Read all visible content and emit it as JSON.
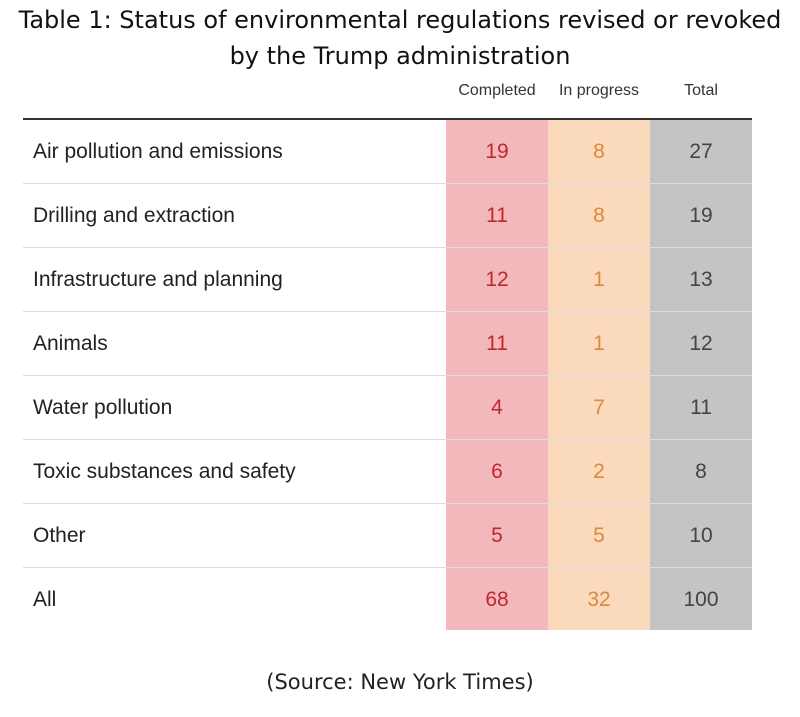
{
  "title": {
    "line1": "Table 1: Status of environmental regulations revised or revoked",
    "line2": "by the Trump administration"
  },
  "source": "(Source: New York Times)",
  "colors": {
    "completed_bg": "#f2b8bc",
    "completed_text": "#c0282e",
    "in_progress_bg": "#fbd9bd",
    "in_progress_text": "#d98a3c",
    "total_bg": "#c4c4c4",
    "total_text": "#444444"
  },
  "chart_data": {
    "type": "table",
    "title": "Table 1: Status of environmental regulations revised or revoked by the Trump administration",
    "columns": [
      "Completed",
      "In progress",
      "Total"
    ],
    "rows": [
      {
        "label": "Air pollution and emissions",
        "values": [
          19,
          8,
          27
        ]
      },
      {
        "label": "Drilling and extraction",
        "values": [
          11,
          8,
          19
        ]
      },
      {
        "label": "Infrastructure and planning",
        "values": [
          12,
          1,
          13
        ]
      },
      {
        "label": "Animals",
        "values": [
          11,
          1,
          12
        ]
      },
      {
        "label": "Water pollution",
        "values": [
          4,
          7,
          11
        ]
      },
      {
        "label": "Toxic substances and safety",
        "values": [
          6,
          2,
          8
        ]
      },
      {
        "label": "Other",
        "values": [
          5,
          5,
          10
        ]
      },
      {
        "label": "All",
        "values": [
          68,
          32,
          100
        ]
      }
    ]
  }
}
